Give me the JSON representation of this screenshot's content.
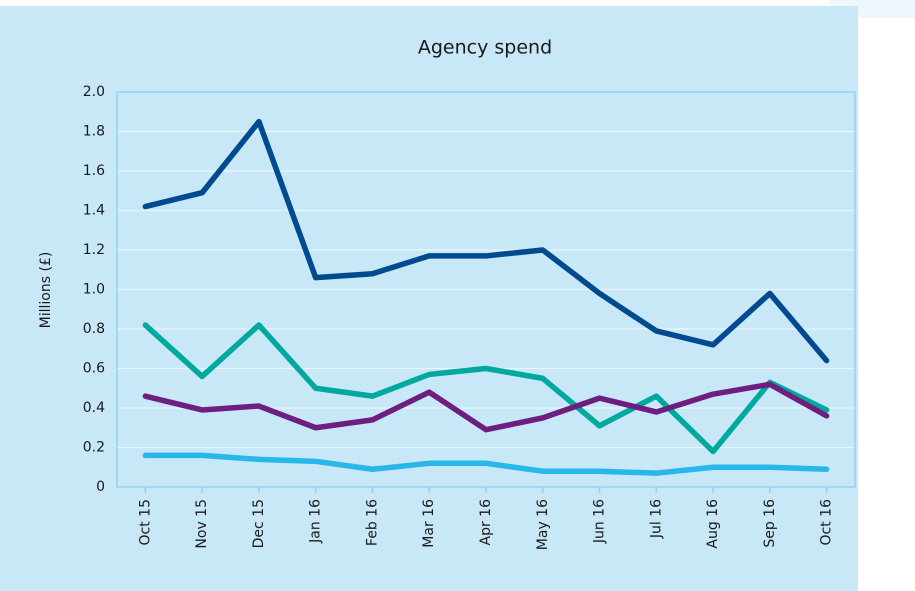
{
  "chart_data": {
    "type": "line",
    "title": "Agency spend",
    "y_label": "Millions (£)",
    "categories": [
      "Oct 15",
      "Nov 15",
      "Dec 15",
      "Jan 16",
      "Feb 16",
      "Mar 16",
      "Apr 16",
      "May 16",
      "Jun 16",
      "Jul 16",
      "Aug 16",
      "Sep 16",
      "Oct 16"
    ],
    "series": [
      {
        "color": "#004a8f",
        "values": [
          1.42,
          1.49,
          1.85,
          1.06,
          1.08,
          1.17,
          1.17,
          1.2,
          0.98,
          0.79,
          0.72,
          0.98,
          0.64
        ]
      },
      {
        "color": "#00a99d",
        "values": [
          0.82,
          0.56,
          0.82,
          0.5,
          0.46,
          0.57,
          0.6,
          0.55,
          0.31,
          0.46,
          0.18,
          0.53,
          0.39
        ]
      },
      {
        "color": "#6d1f80",
        "values": [
          0.46,
          0.39,
          0.41,
          0.3,
          0.34,
          0.48,
          0.29,
          0.35,
          0.45,
          0.38,
          0.47,
          0.52,
          0.36
        ]
      },
      {
        "color": "#29b6e8",
        "values": [
          0.16,
          0.16,
          0.14,
          0.13,
          0.09,
          0.12,
          0.12,
          0.08,
          0.08,
          0.07,
          0.1,
          0.1,
          0.09
        ]
      }
    ],
    "ylim": [
      0,
      2
    ],
    "yticks": [
      0,
      0.2,
      0.4,
      0.6,
      0.8,
      {
        "value": 1,
        "label": "1.0"
      },
      1.2,
      1.4,
      1.6,
      1.8,
      {
        "value": 2,
        "label": "2.0"
      }
    ],
    "grid": true
  }
}
